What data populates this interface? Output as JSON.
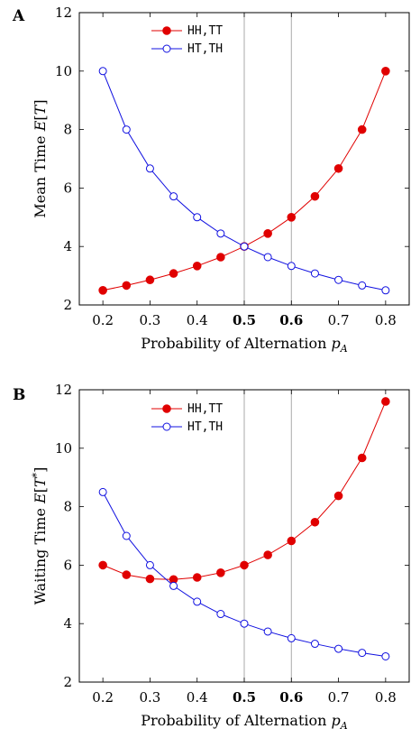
{
  "chart_data": [
    {
      "type": "line",
      "panel_label": "A",
      "ylabel": "Mean Time E[T]",
      "xlabel": "Probability of Alternation p_A",
      "xlim": [
        0.15,
        0.85
      ],
      "ylim": [
        2,
        12
      ],
      "x_ticks": [
        0.2,
        0.3,
        0.4,
        0.5,
        0.6,
        0.7,
        0.8
      ],
      "x_tick_labels": [
        "0.2",
        "0.3",
        "0.4",
        "0.5",
        "0.6",
        "0.7",
        "0.8"
      ],
      "bold_x_ticks": [
        "0.5",
        "0.6"
      ],
      "y_ticks": [
        2,
        4,
        6,
        8,
        10,
        12
      ],
      "y_tick_labels": [
        "2",
        "4",
        "6",
        "8",
        "10",
        "12"
      ],
      "vlines": [
        0.5,
        0.6
      ],
      "legend_position": "top-left",
      "x": [
        0.2,
        0.25,
        0.3,
        0.35,
        0.4,
        0.45,
        0.5,
        0.55,
        0.6,
        0.65,
        0.7,
        0.75,
        0.8
      ],
      "series": [
        {
          "name": "HH,TT",
          "color": "#e00000",
          "marker": "filled-circle",
          "values": [
            2.5,
            2.667,
            2.857,
            3.077,
            3.333,
            3.636,
            4.0,
            4.444,
            5.0,
            5.714,
            6.667,
            8.0,
            10.0
          ]
        },
        {
          "name": "HT,TH",
          "color": "#1010e0",
          "marker": "open-circle",
          "values": [
            10.0,
            8.0,
            6.667,
            5.714,
            5.0,
            4.444,
            4.0,
            3.636,
            3.333,
            3.077,
            2.857,
            2.667,
            2.5
          ]
        }
      ]
    },
    {
      "type": "line",
      "panel_label": "B",
      "ylabel": "Waiting Time E[T*]",
      "xlabel": "Probability of Alternation p_A",
      "xlim": [
        0.15,
        0.85
      ],
      "ylim": [
        2,
        12
      ],
      "x_ticks": [
        0.2,
        0.3,
        0.4,
        0.5,
        0.6,
        0.7,
        0.8
      ],
      "x_tick_labels": [
        "0.2",
        "0.3",
        "0.4",
        "0.5",
        "0.6",
        "0.7",
        "0.8"
      ],
      "bold_x_ticks": [
        "0.5",
        "0.6"
      ],
      "y_ticks": [
        2,
        4,
        6,
        8,
        10,
        12
      ],
      "y_tick_labels": [
        "2",
        "4",
        "6",
        "8",
        "10",
        "12"
      ],
      "vlines": [
        0.5,
        0.6
      ],
      "legend_position": "top-left",
      "x": [
        0.2,
        0.25,
        0.3,
        0.35,
        0.4,
        0.45,
        0.5,
        0.55,
        0.6,
        0.65,
        0.7,
        0.75,
        0.8
      ],
      "series": [
        {
          "name": "HH,TT",
          "color": "#e00000",
          "marker": "filled-circle",
          "values": [
            6.0,
            5.67,
            5.53,
            5.51,
            5.58,
            5.74,
            6.0,
            6.35,
            6.83,
            7.47,
            8.37,
            9.67,
            11.6
          ]
        },
        {
          "name": "HT,TH",
          "color": "#1010e0",
          "marker": "open-circle",
          "values": [
            8.5,
            7.0,
            6.0,
            5.29,
            4.75,
            4.33,
            4.0,
            3.73,
            3.5,
            3.31,
            3.14,
            3.0,
            2.88
          ]
        }
      ]
    }
  ]
}
